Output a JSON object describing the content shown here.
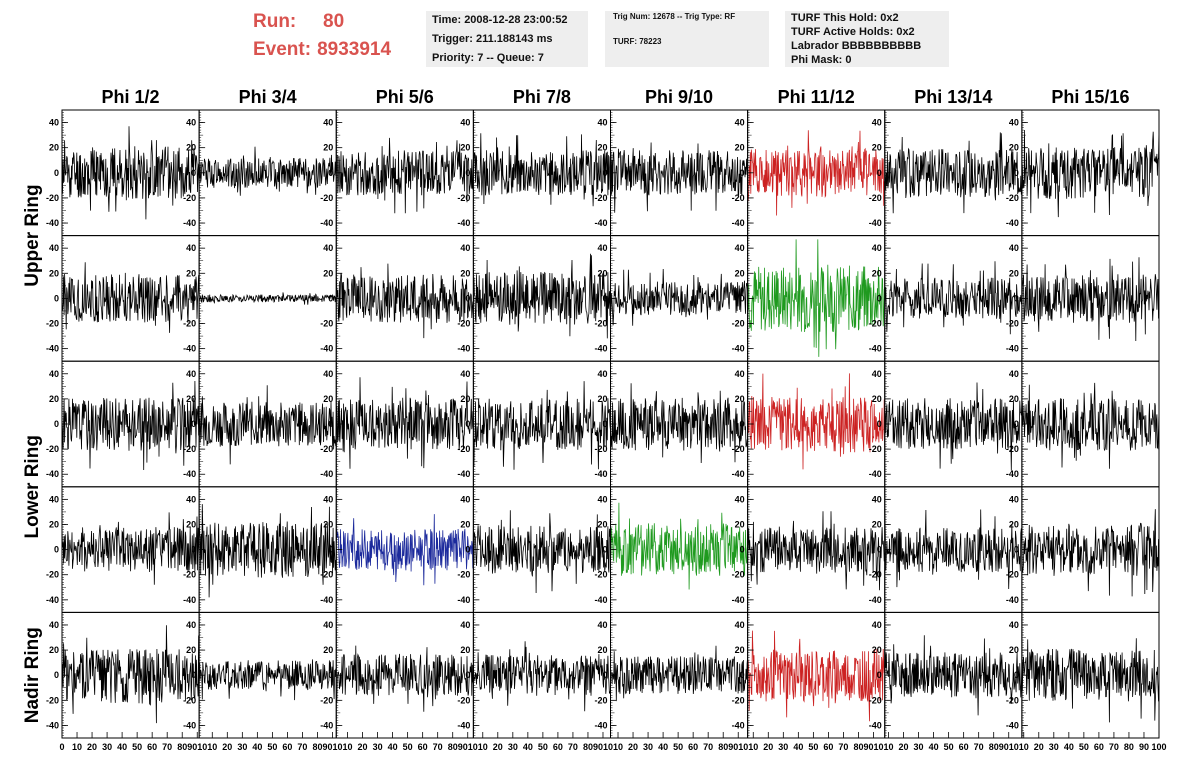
{
  "run": {
    "run_label": "Run:",
    "run_value": "80",
    "event_label": "Event:",
    "event_value": "8933914"
  },
  "header": {
    "time": "Time: 2008-12-28 23:00:52",
    "trigger": "Trigger: 211.188143 ms",
    "priority": "Priority: 7 -- Queue: 7",
    "trig_num": "Trig Num: 12678 -- Trig Type: RF",
    "turf": "TURF: 78223",
    "turf_this_hold": "TURF This Hold: 0x2",
    "turf_active_holds": "TURF Active Holds: 0x2",
    "labrador": "Labrador BBBBBBBBBB",
    "phi_mask": "Phi Mask: 0"
  },
  "colors": {
    "normal": "#000000",
    "red": "#cc2222",
    "green": "#1f9a1f",
    "blue": "#1c2a9c",
    "header_red": "#d9534f"
  },
  "chart_data": {
    "type": "line",
    "columns": [
      "Phi 1/2",
      "Phi 3/4",
      "Phi 5/6",
      "Phi 7/8",
      "Phi 9/10",
      "Phi 11/12",
      "Phi 13/14",
      "Phi 15/16"
    ],
    "ring_labels": [
      {
        "label": "Upper Ring"
      },
      {
        "label": "Lower Ring"
      },
      {
        "label": "Nadir Ring"
      }
    ],
    "rows": 5,
    "xlim": [
      0,
      100
    ],
    "ylim": [
      -50,
      50
    ],
    "yticks": [
      -40,
      -20,
      0,
      20,
      40
    ],
    "xticks": [
      0,
      10,
      20,
      30,
      40,
      50,
      60,
      70,
      80,
      90,
      100
    ],
    "x_tick_labels": [
      "0",
      "10",
      "20",
      "30",
      "40",
      "50",
      "60",
      "70",
      "80",
      "90",
      "100"
    ],
    "x_tick_label_strip": [
      "0",
      "10",
      "20",
      "30",
      "40",
      "50",
      "60",
      "70",
      "80",
      "9010",
      "10",
      "20",
      "30",
      "40",
      "50",
      "60",
      "70",
      "80",
      "9010",
      "10",
      "20",
      "30",
      "40",
      "50",
      "60",
      "70",
      "80",
      "9010",
      "10",
      "20",
      "30",
      "40",
      "50",
      "60",
      "70",
      "80",
      "9010",
      "10",
      "20",
      "30",
      "40",
      "50",
      "60",
      "70",
      "80",
      "9010",
      "10",
      "20",
      "30",
      "40",
      "50",
      "60",
      "70",
      "80",
      "9010",
      "10",
      "20",
      "30",
      "40",
      "50",
      "60",
      "70",
      "80",
      "9010",
      "10",
      "20",
      "30",
      "40",
      "50",
      "60",
      "70",
      "80",
      "90",
      "100"
    ],
    "waveforms": [
      {
        "row": 0,
        "col": 0,
        "color": "normal",
        "amplitude": 14,
        "seed": 11
      },
      {
        "row": 0,
        "col": 1,
        "color": "normal",
        "amplitude": 8,
        "seed": 12
      },
      {
        "row": 0,
        "col": 2,
        "color": "normal",
        "amplitude": 12,
        "seed": 13
      },
      {
        "row": 0,
        "col": 3,
        "color": "normal",
        "amplitude": 12,
        "seed": 14
      },
      {
        "row": 0,
        "col": 4,
        "color": "normal",
        "amplitude": 12,
        "seed": 15
      },
      {
        "row": 0,
        "col": 5,
        "color": "red",
        "amplitude": 13,
        "seed": 16
      },
      {
        "row": 0,
        "col": 6,
        "color": "normal",
        "amplitude": 13,
        "seed": 17
      },
      {
        "row": 0,
        "col": 7,
        "color": "normal",
        "amplitude": 14,
        "seed": 18
      },
      {
        "row": 1,
        "col": 0,
        "color": "normal",
        "amplitude": 13,
        "seed": 21
      },
      {
        "row": 1,
        "col": 1,
        "color": "normal",
        "amplitude": 2,
        "seed": 22
      },
      {
        "row": 1,
        "col": 2,
        "color": "normal",
        "amplitude": 13,
        "seed": 23
      },
      {
        "row": 1,
        "col": 3,
        "color": "normal",
        "amplitude": 14,
        "seed": 24
      },
      {
        "row": 1,
        "col": 4,
        "color": "normal",
        "amplitude": 9,
        "seed": 25
      },
      {
        "row": 1,
        "col": 5,
        "color": "green",
        "amplitude": 18,
        "seed": 26
      },
      {
        "row": 1,
        "col": 6,
        "color": "normal",
        "amplitude": 11,
        "seed": 27
      },
      {
        "row": 1,
        "col": 7,
        "color": "normal",
        "amplitude": 13,
        "seed": 28
      },
      {
        "row": 2,
        "col": 0,
        "color": "normal",
        "amplitude": 14,
        "seed": 31
      },
      {
        "row": 2,
        "col": 1,
        "color": "normal",
        "amplitude": 12,
        "seed": 32
      },
      {
        "row": 2,
        "col": 2,
        "color": "normal",
        "amplitude": 14,
        "seed": 33
      },
      {
        "row": 2,
        "col": 3,
        "color": "normal",
        "amplitude": 14,
        "seed": 34
      },
      {
        "row": 2,
        "col": 4,
        "color": "normal",
        "amplitude": 14,
        "seed": 35
      },
      {
        "row": 2,
        "col": 5,
        "color": "red",
        "amplitude": 15,
        "seed": 36
      },
      {
        "row": 2,
        "col": 6,
        "color": "normal",
        "amplitude": 14,
        "seed": 37
      },
      {
        "row": 2,
        "col": 7,
        "color": "normal",
        "amplitude": 14,
        "seed": 38
      },
      {
        "row": 3,
        "col": 0,
        "color": "normal",
        "amplitude": 12,
        "seed": 41
      },
      {
        "row": 3,
        "col": 1,
        "color": "normal",
        "amplitude": 15,
        "seed": 42
      },
      {
        "row": 3,
        "col": 2,
        "color": "blue",
        "amplitude": 11,
        "seed": 43
      },
      {
        "row": 3,
        "col": 3,
        "color": "normal",
        "amplitude": 13,
        "seed": 44
      },
      {
        "row": 3,
        "col": 4,
        "color": "green",
        "amplitude": 14,
        "seed": 45
      },
      {
        "row": 3,
        "col": 5,
        "color": "normal",
        "amplitude": 12,
        "seed": 46
      },
      {
        "row": 3,
        "col": 6,
        "color": "normal",
        "amplitude": 12,
        "seed": 47
      },
      {
        "row": 3,
        "col": 7,
        "color": "normal",
        "amplitude": 14,
        "seed": 48
      },
      {
        "row": 4,
        "col": 0,
        "color": "normal",
        "amplitude": 15,
        "seed": 51
      },
      {
        "row": 4,
        "col": 1,
        "color": "normal",
        "amplitude": 8,
        "seed": 52
      },
      {
        "row": 4,
        "col": 2,
        "color": "normal",
        "amplitude": 11,
        "seed": 53
      },
      {
        "row": 4,
        "col": 3,
        "color": "normal",
        "amplitude": 11,
        "seed": 54
      },
      {
        "row": 4,
        "col": 4,
        "color": "normal",
        "amplitude": 10,
        "seed": 55
      },
      {
        "row": 4,
        "col": 5,
        "color": "red",
        "amplitude": 14,
        "seed": 56
      },
      {
        "row": 4,
        "col": 6,
        "color": "normal",
        "amplitude": 12,
        "seed": 57
      },
      {
        "row": 4,
        "col": 7,
        "color": "normal",
        "amplitude": 14,
        "seed": 58
      }
    ]
  }
}
